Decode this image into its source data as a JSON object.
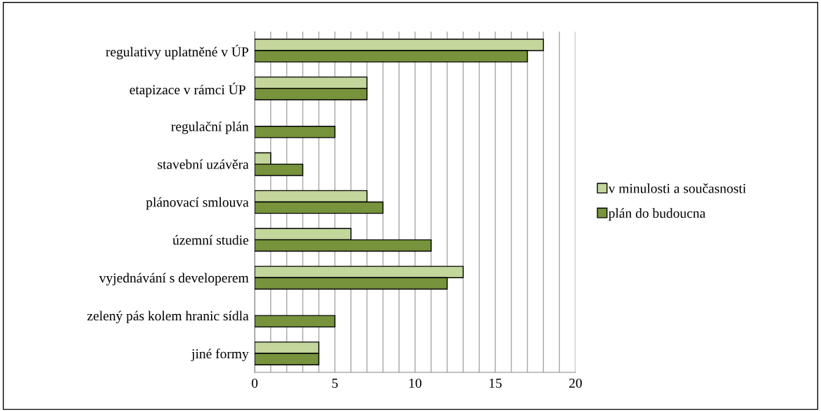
{
  "chart_data": {
    "type": "bar",
    "orientation": "horizontal",
    "categories": [
      "regulativy uplatněné v ÚP",
      "etapizace v rámci ÚP ",
      "regulační plán",
      "stavební uzávěra",
      "plánovací smlouva",
      "územní studie",
      "vyjednávání s developerem",
      "zelený pás kolem hranic sídla",
      "jiné formy"
    ],
    "series": [
      {
        "name": "v minulosti a současnosti",
        "color": "#c3d69b",
        "values": [
          18,
          7,
          null,
          1,
          7,
          6,
          13,
          null,
          4
        ]
      },
      {
        "name": "plán do budoucna",
        "color": "#77933c",
        "values": [
          17,
          7,
          5,
          3,
          8,
          11,
          12,
          5,
          4
        ]
      }
    ],
    "xlim": [
      0,
      20
    ],
    "xticks": [
      0,
      {
        "value": 1,
        "label": null
      },
      {
        "value": 2,
        "label": null
      },
      {
        "value": 3,
        "label": null
      },
      {
        "value": 4,
        "label": null
      },
      5,
      {
        "value": 6,
        "label": null
      },
      {
        "value": 7,
        "label": null
      },
      {
        "value": 8,
        "label": null
      },
      {
        "value": 9,
        "label": null
      },
      10,
      {
        "value": 11,
        "label": null
      },
      {
        "value": 12,
        "label": null
      },
      {
        "value": 13,
        "label": null
      },
      {
        "value": 14,
        "label": null
      },
      15,
      {
        "value": 16,
        "label": null
      },
      {
        "value": 17,
        "label": null
      },
      {
        "value": 18,
        "label": null
      },
      {
        "value": 19,
        "label": null
      },
      20
    ],
    "grid": "x",
    "legend": "right"
  }
}
